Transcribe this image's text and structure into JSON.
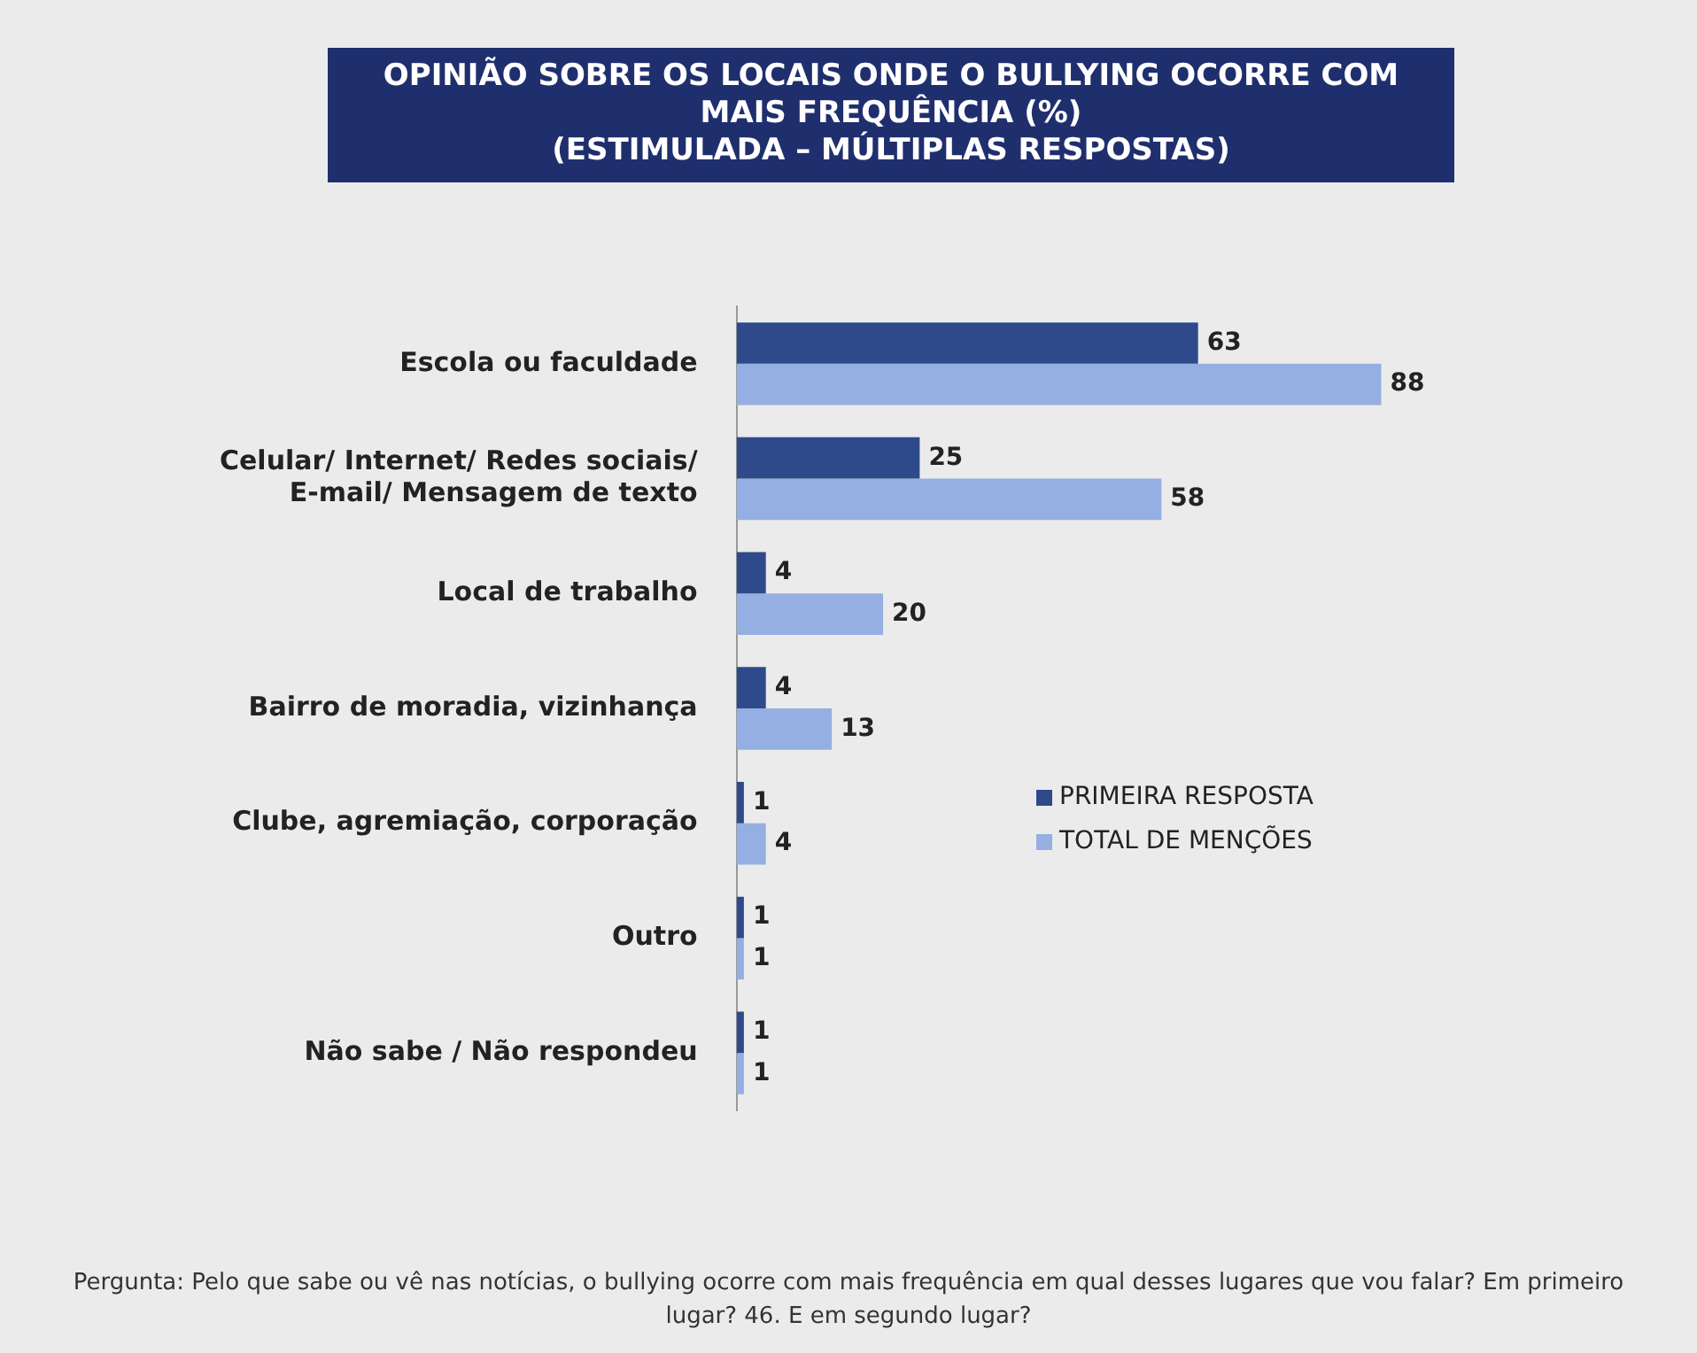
{
  "chart_data": {
    "type": "bar",
    "orientation": "horizontal",
    "title": "OPINIÃO SOBRE OS LOCAIS ONDE O BULLYING OCORRE COM MAIS FREQUÊNCIA (%)",
    "subtitle": "(ESTIMULADA – MÚLTIPLAS RESPOSTAS)",
    "categories": [
      "Escola ou faculdade",
      "Celular/ Internet/ Redes sociais/ E-mail/ Mensagem de texto",
      "Local de trabalho",
      "Bairro de moradia, vizinhança",
      "Clube, agremiação, corporação",
      "Outro",
      "Não sabe / Não respondeu"
    ],
    "series": [
      {
        "name": "PRIMEIRA RESPOSTA",
        "color": "#2f4a8a",
        "values": [
          63,
          25,
          4,
          4,
          1,
          1,
          1
        ]
      },
      {
        "name": "TOTAL DE MENÇÕES",
        "color": "#95afe2",
        "values": [
          88,
          58,
          20,
          13,
          4,
          1,
          1
        ]
      }
    ],
    "data_labels": true,
    "legend": "right",
    "grid": false,
    "annotations": [
      "Pergunta: Pelo que sabe ou vê nas notícias, o bullying ocorre com mais frequência em qual desses lugares que vou falar? Em primeiro lugar? 46. E em segundo lugar?"
    ]
  }
}
